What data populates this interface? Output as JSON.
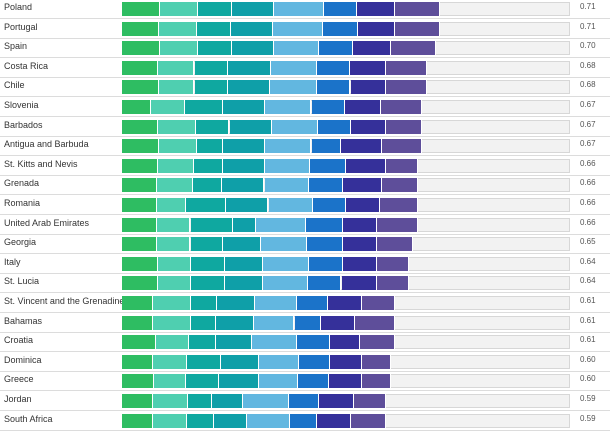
{
  "chart_data": {
    "type": "bar",
    "orientation": "horizontal-stacked",
    "colors": [
      "#2ebd62",
      "#4fcfb0",
      "#0fa8a0",
      "#0f9fa8",
      "#62b7e0",
      "#1b73c9",
      "#35309a",
      "#5e4e9a"
    ],
    "xlim": [
      0,
      1
    ],
    "categories": [
      "Poland",
      "Portugal",
      "Spain",
      "Costa Rica",
      "Chile",
      "Slovenia",
      "Barbados",
      "Antigua and Barbuda",
      "St. Kitts and Nevis",
      "Grenada",
      "Romania",
      "United Arab Emirates",
      "Georgia",
      "Italy",
      "St. Lucia",
      "St. Vincent and the Grenadines",
      "Bahamas",
      "Croatia",
      "Dominica",
      "Greece",
      "Jordan",
      "South Africa"
    ],
    "values": [
      0.71,
      0.71,
      0.7,
      0.68,
      0.68,
      0.67,
      0.67,
      0.67,
      0.66,
      0.66,
      0.66,
      0.66,
      0.65,
      0.64,
      0.64,
      0.61,
      0.61,
      0.61,
      0.6,
      0.6,
      0.59,
      0.59
    ],
    "value_labels": [
      "0.71",
      "0.71",
      "0.70",
      "0.68",
      "0.68",
      "0.67",
      "0.67",
      "0.67",
      "0.66",
      "0.66",
      "0.66",
      "0.66",
      "0.65",
      "0.64",
      "0.64",
      "0.61",
      "0.61",
      "0.61",
      "0.60",
      "0.60",
      "0.59",
      "0.59"
    ],
    "segments": [
      [
        0.085,
        0.085,
        0.075,
        0.095,
        0.11,
        0.075,
        0.085,
        0.1
      ],
      [
        0.083,
        0.085,
        0.075,
        0.095,
        0.11,
        0.078,
        0.084,
        0.1
      ],
      [
        0.085,
        0.085,
        0.075,
        0.095,
        0.1,
        0.075,
        0.085,
        0.1
      ],
      [
        0.08,
        0.082,
        0.075,
        0.095,
        0.103,
        0.073,
        0.082,
        0.09
      ],
      [
        0.082,
        0.08,
        0.075,
        0.093,
        0.105,
        0.075,
        0.08,
        0.09
      ],
      [
        0.065,
        0.075,
        0.085,
        0.095,
        0.103,
        0.075,
        0.08,
        0.092
      ],
      [
        0.08,
        0.085,
        0.075,
        0.095,
        0.103,
        0.073,
        0.079,
        0.08
      ],
      [
        0.082,
        0.085,
        0.058,
        0.095,
        0.103,
        0.065,
        0.092,
        0.09
      ],
      [
        0.08,
        0.08,
        0.065,
        0.095,
        0.1,
        0.08,
        0.09,
        0.07
      ],
      [
        0.078,
        0.08,
        0.065,
        0.095,
        0.1,
        0.075,
        0.087,
        0.08
      ],
      [
        0.077,
        0.065,
        0.09,
        0.095,
        0.1,
        0.072,
        0.076,
        0.085
      ],
      [
        0.078,
        0.075,
        0.095,
        0.052,
        0.11,
        0.083,
        0.077,
        0.09
      ],
      [
        0.078,
        0.075,
        0.072,
        0.085,
        0.103,
        0.08,
        0.077,
        0.08
      ],
      [
        0.08,
        0.075,
        0.075,
        0.085,
        0.103,
        0.075,
        0.077,
        0.07
      ],
      [
        0.08,
        0.075,
        0.075,
        0.085,
        0.1,
        0.075,
        0.08,
        0.07
      ],
      [
        0.068,
        0.085,
        0.058,
        0.085,
        0.095,
        0.068,
        0.077,
        0.074
      ],
      [
        0.07,
        0.085,
        0.055,
        0.085,
        0.09,
        0.058,
        0.077,
        0.09
      ],
      [
        0.075,
        0.075,
        0.06,
        0.08,
        0.1,
        0.075,
        0.067,
        0.078
      ],
      [
        0.07,
        0.075,
        0.075,
        0.085,
        0.09,
        0.07,
        0.07,
        0.065
      ],
      [
        0.072,
        0.07,
        0.075,
        0.088,
        0.088,
        0.07,
        0.072,
        0.065
      ],
      [
        0.07,
        0.077,
        0.053,
        0.07,
        0.103,
        0.067,
        0.078,
        0.072
      ],
      [
        0.07,
        0.075,
        0.06,
        0.075,
        0.095,
        0.06,
        0.077,
        0.078
      ]
    ]
  }
}
